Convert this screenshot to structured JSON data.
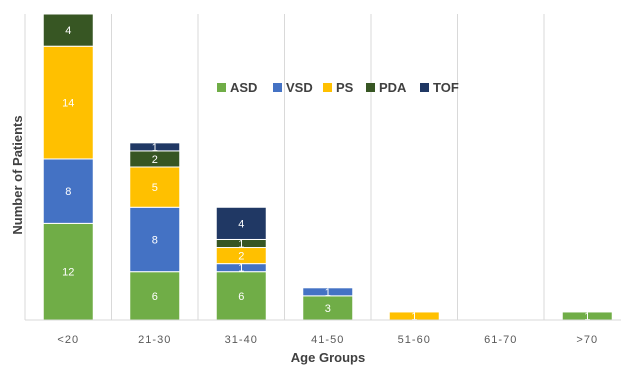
{
  "chart_data": {
    "type": "bar",
    "stacked": true,
    "title": "",
    "xlabel": "Age Groups",
    "ylabel": "Number of Patients",
    "categories": [
      "<20",
      "21-30",
      "31-40",
      "41-50",
      "51-60",
      "61-70",
      ">70"
    ],
    "series": [
      {
        "name": "ASD",
        "color": "#70ad47",
        "values": [
          12,
          6,
          6,
          3,
          0,
          0,
          1
        ]
      },
      {
        "name": "VSD",
        "color": "#4472c4",
        "values": [
          8,
          8,
          1,
          1,
          0,
          0,
          0
        ]
      },
      {
        "name": "PS",
        "color": "#ffc000",
        "values": [
          14,
          5,
          2,
          0,
          1,
          0,
          0
        ]
      },
      {
        "name": "PDA",
        "color": "#375623",
        "values": [
          4,
          2,
          1,
          0,
          0,
          0,
          0
        ]
      },
      {
        "name": "TOF",
        "color": "#203864",
        "values": [
          0,
          1,
          4,
          0,
          0,
          0,
          0
        ]
      }
    ],
    "data_labels": {
      "ASD": [
        "12",
        "6",
        "6",
        "3",
        "",
        "",
        "1"
      ],
      "VSD": [
        "8",
        "8",
        "1",
        "1",
        "",
        "",
        ""
      ],
      "PS": [
        "14",
        "5",
        "2",
        "",
        "1",
        "",
        ""
      ],
      "PDA": [
        "4",
        "2",
        "1",
        "",
        "",
        "",
        ""
      ],
      "TOF": [
        "",
        "1",
        "4",
        "",
        "",
        "",
        ""
      ]
    },
    "ylim": [
      0,
      38
    ],
    "grid": "vertical",
    "legend": "inside-top-right"
  }
}
